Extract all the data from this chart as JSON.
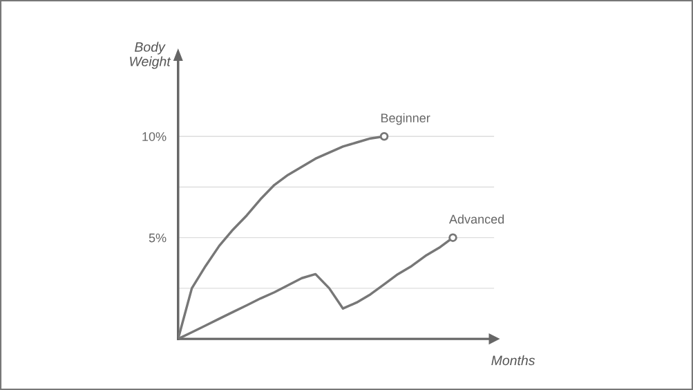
{
  "chart_data": {
    "type": "line",
    "xlabel": "Months",
    "ylabel": "Body\nWeight",
    "categories": [
      null,
      null,
      null,
      null,
      null,
      null,
      null,
      null,
      null,
      null,
      null,
      null,
      null,
      null,
      null,
      null,
      null,
      null,
      null,
      null,
      null
    ],
    "series": [
      {
        "name": "Beginner",
        "color": "#777777",
        "values": [
          0,
          2.5,
          3.6,
          4.6,
          5.4,
          6.1,
          6.9,
          7.6,
          8.1,
          8.5,
          8.9,
          9.2,
          9.5,
          9.7,
          9.9,
          10,
          null,
          null,
          null,
          null,
          null
        ]
      },
      {
        "name": "Advanced",
        "color": "#777777",
        "values": [
          0,
          0.33,
          0.66,
          1.0,
          1.33,
          1.66,
          2.0,
          2.3,
          2.65,
          3.0,
          3.2,
          2.5,
          1.5,
          1.8,
          2.2,
          2.7,
          3.2,
          3.6,
          4.1,
          4.5,
          5.0
        ]
      }
    ],
    "ylim": [
      0,
      14
    ],
    "yticks": [
      {
        "value": 2.5,
        "label": null
      },
      {
        "value": 5,
        "label": "5%"
      },
      {
        "value": 7.5,
        "label": null
      },
      {
        "value": 10,
        "label": "10%"
      }
    ],
    "grid": "y",
    "legend": false,
    "line_style": "solid"
  }
}
